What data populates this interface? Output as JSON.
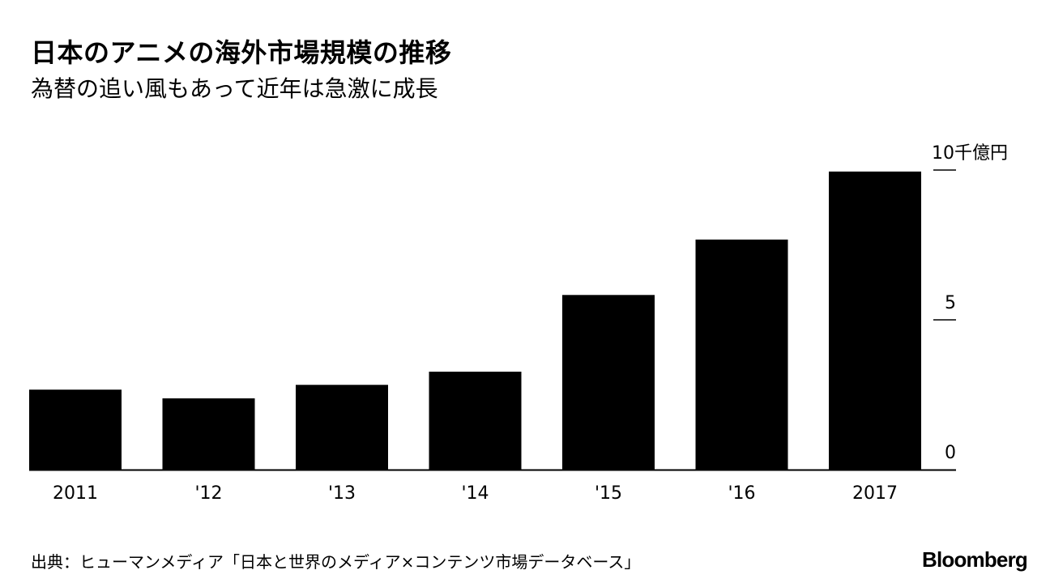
{
  "title": "日本のアニメの海外市場規模の推移",
  "subtitle": "為替の追い風もあって近年は急激に成長",
  "source": "出典：ヒューマンメディア「日本と世界のメディア×コンテンツ市場データベース」",
  "brand": "Bloomberg",
  "chart_data": {
    "type": "bar",
    "categories": [
      "2011",
      "'12",
      "'13",
      "'14",
      "'15",
      "'16",
      "2017"
    ],
    "values": [
      2.67,
      2.38,
      2.83,
      3.27,
      5.83,
      7.68,
      9.95
    ],
    "unit": "千億円",
    "yticks": [
      {
        "value": 0,
        "label": "0"
      },
      {
        "value": 5,
        "label": "5"
      },
      {
        "value": 10,
        "label": "10千億円"
      }
    ],
    "ylim": [
      0,
      10
    ],
    "xlabel": "",
    "ylabel": "",
    "grid": false,
    "legend": "none",
    "colors": {
      "bar": "#000000",
      "axis": "#000000"
    }
  }
}
